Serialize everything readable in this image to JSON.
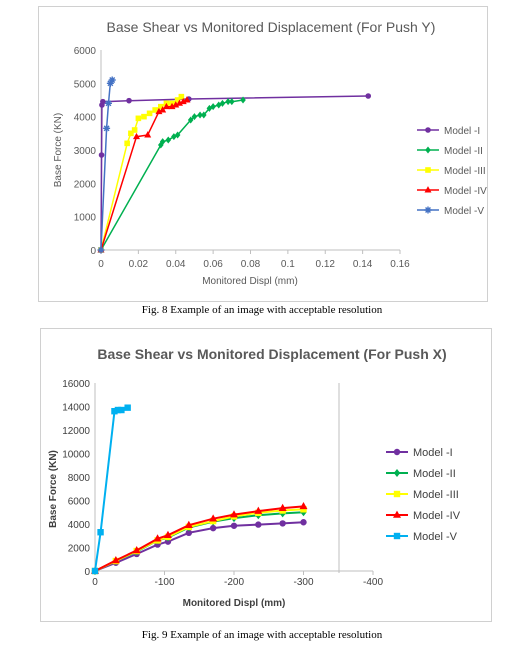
{
  "figures": [
    {
      "caption": "Fig. 8 Example of an image with acceptable resolution"
    },
    {
      "caption": "Fig. 9 Example of an image with acceptable resolution"
    }
  ],
  "chart_data": [
    {
      "type": "scatter",
      "title": "Base Shear vs Monitored Displacement (For Push Y)",
      "xlabel": "Monitored Displ (mm)",
      "ylabel": "Base Force (KN)",
      "xlim": [
        0,
        0.16
      ],
      "ylim": [
        0,
        6000
      ],
      "xticks": [
        0,
        0.02,
        0.04,
        0.06,
        0.08,
        0.1,
        0.12,
        0.14,
        0.16
      ],
      "xtick_labels": [
        "0",
        "0.02",
        "0.04",
        "0.06",
        "0.08",
        "0.1",
        "0.12",
        "0.14",
        "0.16"
      ],
      "yticks": [
        0,
        1000,
        2000,
        3000,
        4000,
        5000,
        6000
      ],
      "ytick_labels": [
        "0",
        "1000",
        "2000",
        "3000",
        "4000",
        "5000",
        "6000"
      ],
      "grid": false,
      "legend": "right",
      "series": [
        {
          "name": "Model -I",
          "color": "#7030a0",
          "marker": "circle",
          "x": [
            0,
            0.0003,
            0.0005,
            0.001,
            0.015,
            0.047,
            0.143
          ],
          "y": [
            0,
            2850,
            4350,
            4450,
            4480,
            4530,
            4620
          ]
        },
        {
          "name": "Model -II",
          "color": "#00b050",
          "marker": "diamond",
          "x": [
            0,
            0.032,
            0.033,
            0.036,
            0.039,
            0.041,
            0.048,
            0.05,
            0.053,
            0.055,
            0.058,
            0.06,
            0.063,
            0.065,
            0.068,
            0.07,
            0.076
          ],
          "y": [
            0,
            3150,
            3250,
            3300,
            3400,
            3450,
            3900,
            4000,
            4050,
            4050,
            4250,
            4300,
            4350,
            4400,
            4450,
            4450,
            4500
          ]
        },
        {
          "name": "Model -III",
          "color": "#ffff00",
          "marker": "square",
          "x": [
            0,
            0.014,
            0.016,
            0.018,
            0.02,
            0.023,
            0.026,
            0.029,
            0.032,
            0.035,
            0.038,
            0.041,
            0.043
          ],
          "y": [
            0,
            3200,
            3500,
            3600,
            3950,
            4000,
            4100,
            4200,
            4300,
            4400,
            4400,
            4500,
            4600
          ]
        },
        {
          "name": "Model -IV",
          "color": "#ff0000",
          "marker": "triangle",
          "x": [
            0,
            0.019,
            0.025,
            0.031,
            0.033,
            0.035,
            0.038,
            0.04,
            0.042,
            0.044,
            0.046
          ],
          "y": [
            0,
            3400,
            3450,
            4150,
            4200,
            4300,
            4300,
            4350,
            4400,
            4450,
            4500
          ]
        },
        {
          "name": "Model -V",
          "color": "#4472c4",
          "marker": "star",
          "x": [
            0,
            0.003,
            0.004,
            0.005,
            0.006
          ],
          "y": [
            0,
            3650,
            4400,
            5000,
            5100
          ]
        }
      ]
    },
    {
      "type": "scatter",
      "title": "Base Shear vs Monitored Displacement (For Push X)",
      "xlabel": "Monitored Displ (mm)",
      "ylabel": "Base Force (KN)",
      "xlim": [
        0,
        -400
      ],
      "ylim": [
        0,
        16000
      ],
      "xticks": [
        0,
        -100,
        -200,
        -300,
        -400
      ],
      "xtick_labels": [
        "0",
        "-100",
        "-200",
        "-300",
        "-400"
      ],
      "yticks": [
        0,
        2000,
        4000,
        6000,
        8000,
        10000,
        12000,
        14000,
        16000
      ],
      "ytick_labels": [
        "0",
        "2000",
        "4000",
        "6000",
        "8000",
        "10000",
        "12000",
        "14000",
        "16000"
      ],
      "grid": false,
      "legend": "right",
      "series": [
        {
          "name": "Model -I",
          "color": "#7030a0",
          "marker": "circle",
          "x": [
            0,
            -30,
            -60,
            -90,
            -105,
            -135,
            -170,
            -200,
            -235,
            -270,
            -300
          ],
          "y": [
            0,
            700,
            1450,
            2250,
            2500,
            3250,
            3650,
            3850,
            3950,
            4050,
            4150
          ]
        },
        {
          "name": "Model -II",
          "color": "#00b050",
          "marker": "diamond",
          "x": [
            0,
            -30,
            -60,
            -90,
            -105,
            -135,
            -170,
            -200,
            -235,
            -270,
            -300
          ],
          "y": [
            0,
            850,
            1650,
            2600,
            2850,
            3700,
            4200,
            4500,
            4750,
            4900,
            5000
          ]
        },
        {
          "name": "Model -III",
          "color": "#ffff00",
          "marker": "square",
          "x": [
            0,
            -30,
            -60,
            -90,
            -105,
            -135,
            -170,
            -200,
            -235,
            -270,
            -300
          ],
          "y": [
            0,
            850,
            1700,
            2600,
            2900,
            3750,
            4250,
            4650,
            4950,
            5150,
            5250
          ]
        },
        {
          "name": "Model -IV",
          "color": "#ff0000",
          "marker": "triangle",
          "x": [
            0,
            -30,
            -60,
            -90,
            -105,
            -135,
            -170,
            -200,
            -235,
            -270,
            -300
          ],
          "y": [
            0,
            900,
            1750,
            2750,
            3050,
            3900,
            4450,
            4800,
            5100,
            5350,
            5500
          ]
        },
        {
          "name": "Model -V",
          "color": "#00b0f0",
          "marker": "square",
          "x": [
            0,
            -8,
            -28,
            -33,
            -38,
            -47
          ],
          "y": [
            0,
            3300,
            13600,
            13700,
            13700,
            13900
          ]
        }
      ]
    }
  ]
}
